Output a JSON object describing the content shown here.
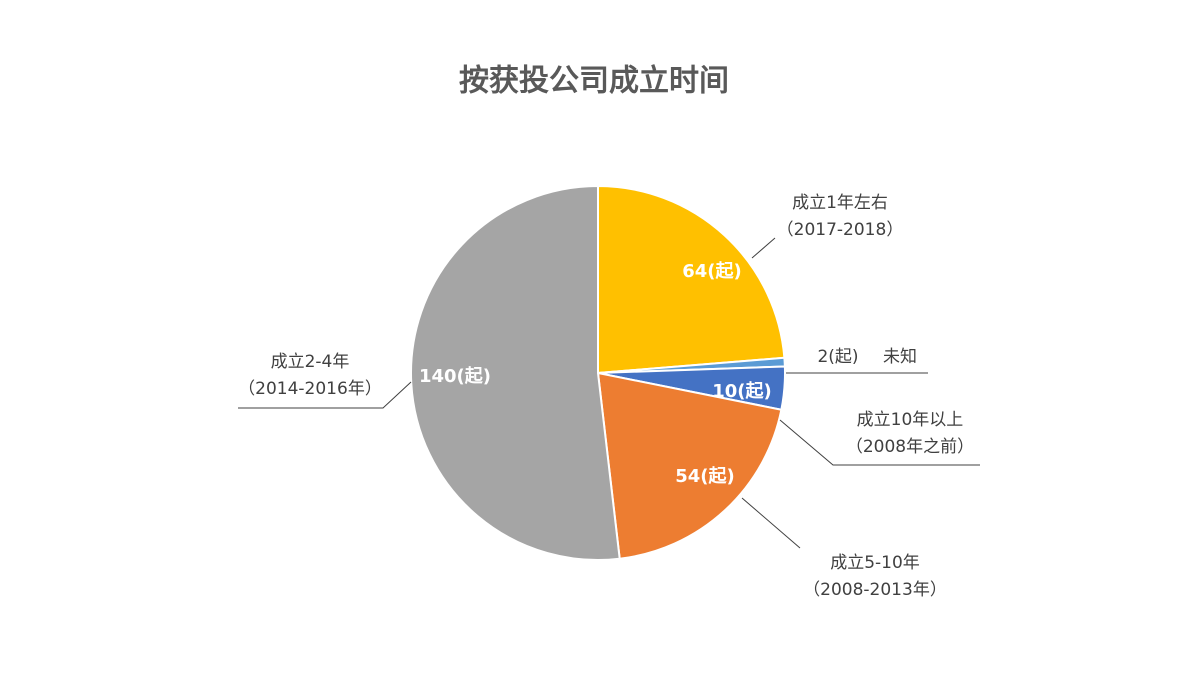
{
  "chart_data": {
    "type": "pie",
    "title": "按获投公司成立时间",
    "categories": [
      "成立1年左右",
      "未知",
      "成立10年以上",
      "成立5-10年",
      "成立2-4年"
    ],
    "category_periods": [
      "（2017-2018）",
      null,
      "（2008年之前）",
      "（2008-2013年）",
      "（2014-2016年）"
    ],
    "values": [
      64,
      2,
      10,
      54,
      140
    ],
    "value_labels": [
      "64(起)",
      "2(起)",
      "10(起)",
      "54(起)",
      "140(起)"
    ],
    "colors": [
      "#FFC000",
      "#5B9BD5",
      "#4472C4",
      "#ED7D31",
      "#A5A5A5"
    ]
  }
}
